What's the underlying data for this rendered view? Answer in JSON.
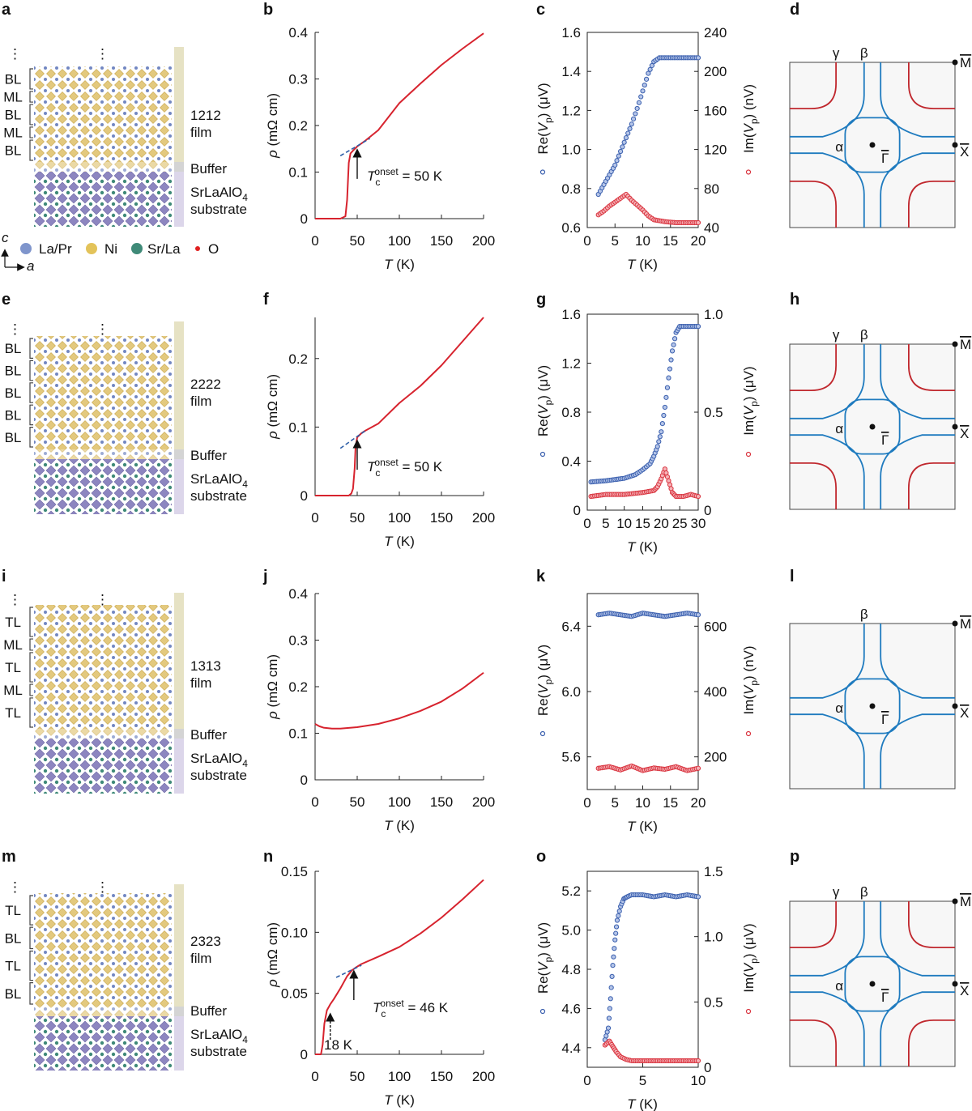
{
  "legend": {
    "items": [
      {
        "label": "La/Pr",
        "color": "#7f95cc"
      },
      {
        "label": "Ni",
        "color": "#e3c35a"
      },
      {
        "label": "Sr/La",
        "color": "#3f8a78"
      },
      {
        "label": "O",
        "color": "#e02020"
      }
    ],
    "axis_c": "c",
    "axis_a": "a"
  },
  "rows": [
    {
      "structure": {
        "letter": "a",
        "layers": [
          "BL",
          "ML",
          "BL",
          "ML",
          "BL"
        ],
        "film_label": [
          "1212",
          "film"
        ],
        "buffer": "Buffer",
        "substrate": [
          "SrLaAlO",
          "4",
          "substrate"
        ],
        "ellipsis": "⋮"
      },
      "fermi": {
        "letter": "d",
        "gamma": true,
        "labels": {
          "gamma": "γ",
          "beta": "β",
          "alpha": "α",
          "gamma_point": "Γ",
          "m_point": "M",
          "x_point": "X"
        }
      }
    },
    {
      "structure": {
        "letter": "e",
        "layers": [
          "BL",
          "BL",
          "BL",
          "BL",
          "BL"
        ],
        "film_label": [
          "2222",
          "film"
        ],
        "buffer": "Buffer",
        "substrate": [
          "SrLaAlO",
          "4",
          "substrate"
        ],
        "ellipsis": "⋮"
      },
      "fermi": {
        "letter": "h",
        "gamma": true,
        "labels": {
          "gamma": "γ",
          "beta": "β",
          "alpha": "α",
          "gamma_point": "Γ",
          "m_point": "M",
          "x_point": "X"
        }
      }
    },
    {
      "structure": {
        "letter": "i",
        "layers": [
          "TL",
          "ML",
          "TL",
          "ML",
          "TL"
        ],
        "film_label": [
          "1313",
          "film"
        ],
        "buffer": "Buffer",
        "substrate": [
          "SrLaAlO",
          "4",
          "substrate"
        ],
        "ellipsis": "⋮"
      },
      "fermi": {
        "letter": "l",
        "gamma": false,
        "labels": {
          "beta": "β",
          "alpha": "α",
          "gamma_point": "Γ",
          "m_point": "M",
          "x_point": "X"
        }
      }
    },
    {
      "structure": {
        "letter": "m",
        "layers": [
          "TL",
          "BL",
          "TL",
          "BL"
        ],
        "film_label": [
          "2323",
          "film"
        ],
        "buffer": "Buffer",
        "substrate": [
          "SrLaAlO",
          "4",
          "substrate"
        ],
        "ellipsis": "⋮"
      },
      "fermi": {
        "letter": "p",
        "gamma": true,
        "labels": {
          "gamma": "γ",
          "beta": "β",
          "alpha": "α",
          "gamma_point": "Γ",
          "m_point": "M",
          "x_point": "X"
        }
      }
    }
  ],
  "colors": {
    "curve": "#d7232e",
    "dash": "#2f5fa8",
    "re_points": "#3a5fae",
    "im_points": "#d9343f",
    "fermi_blue": "#1f7bbf",
    "fermi_red": "#c0282e"
  },
  "chart_data": [
    {
      "panel": "b",
      "type": "line",
      "xlabel": {
        "var": "T",
        "unit": " (K)"
      },
      "ylabel": {
        "var": "ρ",
        "unit": " (mΩ cm)"
      },
      "xlim": [
        0,
        200
      ],
      "ylim": [
        0,
        0.4
      ],
      "xticks": [
        0,
        50,
        100,
        150,
        200
      ],
      "yticks": [
        0,
        0.1,
        0.2,
        0.3,
        0.4
      ],
      "ytick_labels": [
        "0",
        "0.1",
        "0.2",
        "0.3",
        "0.4"
      ],
      "series": [
        {
          "x": [
            0,
            30,
            36,
            38,
            40,
            42,
            45,
            50,
            60,
            75,
            100,
            125,
            150,
            175,
            200
          ],
          "y": [
            0,
            0,
            0.005,
            0.04,
            0.12,
            0.14,
            0.146,
            0.155,
            0.168,
            0.19,
            0.248,
            0.29,
            0.33,
            0.365,
            0.398
          ]
        }
      ],
      "extrapolation": {
        "x": [
          30,
          65
        ],
        "y": [
          0.135,
          0.172
        ]
      },
      "annotation": {
        "var": "T",
        "sub": "c",
        "sup": "onset",
        "rest": " = 50 K",
        "arrow_T": 50
      }
    },
    {
      "panel": "c",
      "type": "scatter",
      "xlabel": {
        "var": "T",
        "unit": " (K)"
      },
      "ylabel_left": {
        "pre": "Re(",
        "var": "V",
        "sub": "p",
        "post": ") (μV)"
      },
      "ylabel_right": {
        "pre": "Im(",
        "var": "V",
        "sub": "p",
        "post": ") (nV)"
      },
      "xlim": [
        0,
        20
      ],
      "ylim_left": [
        0.6,
        1.6
      ],
      "ylim_right": [
        40,
        240
      ],
      "xticks": [
        0,
        5,
        10,
        15,
        20
      ],
      "yticks_left": [
        0.6,
        0.8,
        1.0,
        1.2,
        1.4,
        1.6
      ],
      "ytick_labels_left": [
        "0.6",
        "0.8",
        "1.0",
        "1.2",
        "1.4",
        "1.6"
      ],
      "yticks_right": [
        40,
        80,
        120,
        160,
        200,
        240
      ],
      "ytick_labels_right": [
        "40",
        "80",
        "120",
        "160",
        "200",
        "240"
      ],
      "re": {
        "x": [
          2,
          3,
          4,
          5,
          6,
          7,
          8,
          9,
          10,
          11,
          12,
          13,
          14,
          16,
          18,
          20
        ],
        "y": [
          0.77,
          0.82,
          0.87,
          0.92,
          0.99,
          1.06,
          1.13,
          1.21,
          1.3,
          1.39,
          1.45,
          1.47,
          1.47,
          1.47,
          1.47,
          1.47
        ]
      },
      "im": {
        "x": [
          2,
          3,
          4,
          5,
          6,
          7,
          8,
          9,
          10,
          11,
          12,
          14,
          16,
          18,
          20
        ],
        "y": [
          53,
          57,
          62,
          66,
          70,
          74,
          68,
          63,
          58,
          52,
          48,
          46,
          45,
          45,
          45
        ]
      }
    },
    {
      "panel": "f",
      "type": "line",
      "xlabel": {
        "var": "T",
        "unit": " (K)"
      },
      "ylabel": {
        "var": "ρ",
        "unit": " (mΩ cm)"
      },
      "xlim": [
        0,
        200
      ],
      "ylim": [
        0,
        0.26
      ],
      "xticks": [
        0,
        50,
        100,
        150,
        200
      ],
      "yticks": [
        0,
        0.1,
        0.2
      ],
      "ytick_labels": [
        "0",
        "0.1",
        "0.2"
      ],
      "series": [
        {
          "x": [
            0,
            40,
            43,
            45,
            47,
            48,
            50,
            55,
            60,
            75,
            100,
            125,
            150,
            175,
            200
          ],
          "y": [
            0,
            0,
            0.003,
            0.01,
            0.04,
            0.07,
            0.085,
            0.091,
            0.095,
            0.105,
            0.135,
            0.16,
            0.19,
            0.225,
            0.26
          ]
        }
      ],
      "extrapolation": {
        "x": [
          30,
          60
        ],
        "y": [
          0.069,
          0.095
        ]
      },
      "annotation": {
        "var": "T",
        "sub": "c",
        "sup": "onset",
        "rest": " = 50 K",
        "arrow_T": 50
      }
    },
    {
      "panel": "g",
      "type": "scatter",
      "xlabel": {
        "var": "T",
        "unit": " (K)"
      },
      "ylabel_left": {
        "pre": "Re(",
        "var": "V",
        "sub": "p",
        "post": ") (μV)"
      },
      "ylabel_right": {
        "pre": "Im(",
        "var": "V",
        "sub": "p",
        "post": ") (μV)"
      },
      "xlim": [
        0,
        30
      ],
      "ylim_left": [
        0,
        1.6
      ],
      "ylim_right": [
        0,
        1.0
      ],
      "xticks": [
        0,
        5,
        10,
        15,
        20,
        25,
        30
      ],
      "yticks_left": [
        0,
        0.4,
        0.8,
        1.2,
        1.6
      ],
      "ytick_labels_left": [
        "0",
        "0.4",
        "0.8",
        "1.2",
        "1.6"
      ],
      "yticks_right": [
        0,
        0.5,
        1.0
      ],
      "ytick_labels_right": [
        "0",
        "0.5",
        "1.0"
      ],
      "re": {
        "x": [
          1,
          5,
          10,
          13,
          15,
          17,
          18,
          19,
          20,
          21,
          22,
          23,
          24,
          25,
          27,
          30
        ],
        "y": [
          0.23,
          0.24,
          0.26,
          0.29,
          0.33,
          0.38,
          0.44,
          0.52,
          0.64,
          0.84,
          1.08,
          1.3,
          1.45,
          1.5,
          1.5,
          1.5
        ]
      },
      "im": {
        "x": [
          1,
          5,
          10,
          15,
          18,
          19,
          20,
          21,
          22,
          23,
          24,
          26,
          28,
          30
        ],
        "y": [
          0.07,
          0.08,
          0.08,
          0.09,
          0.1,
          0.12,
          0.16,
          0.21,
          0.15,
          0.09,
          0.07,
          0.07,
          0.08,
          0.07
        ]
      }
    },
    {
      "panel": "j",
      "type": "line",
      "xlabel": {
        "var": "T",
        "unit": " (K)"
      },
      "ylabel": {
        "var": "ρ",
        "unit": " (mΩ cm)"
      },
      "xlim": [
        0,
        200
      ],
      "ylim": [
        0,
        0.4
      ],
      "xticks": [
        0,
        50,
        100,
        150,
        200
      ],
      "yticks": [
        0,
        0.1,
        0.2,
        0.3,
        0.4
      ],
      "ytick_labels": [
        "0",
        "0.1",
        "0.2",
        "0.3",
        "0.4"
      ],
      "series": [
        {
          "x": [
            0,
            5,
            10,
            20,
            30,
            50,
            75,
            100,
            125,
            150,
            175,
            200
          ],
          "y": [
            0.12,
            0.115,
            0.112,
            0.11,
            0.11,
            0.113,
            0.12,
            0.132,
            0.148,
            0.168,
            0.196,
            0.23
          ]
        }
      ]
    },
    {
      "panel": "k",
      "type": "scatter",
      "xlabel": {
        "var": "T",
        "unit": " (K)"
      },
      "ylabel_left": {
        "pre": "Re(",
        "var": "V",
        "sub": "p",
        "post": ") (μV)"
      },
      "ylabel_right": {
        "pre": "Im(",
        "var": "V",
        "sub": "p",
        "post": ") (nV)"
      },
      "xlim": [
        0,
        20
      ],
      "ylim_left": [
        5.4,
        6.6
      ],
      "ylim_right": [
        100,
        700
      ],
      "xticks": [
        0,
        5,
        10,
        15,
        20
      ],
      "yticks_left": [
        5.6,
        6.0,
        6.4
      ],
      "ytick_labels_left": [
        "5.6",
        "6.0",
        "6.4"
      ],
      "yticks_right": [
        200,
        400,
        600
      ],
      "ytick_labels_right": [
        "200",
        "400",
        "600"
      ],
      "re": {
        "x": [
          2,
          4,
          6,
          8,
          10,
          12,
          14,
          16,
          18,
          20
        ],
        "y": [
          6.47,
          6.48,
          6.47,
          6.46,
          6.48,
          6.47,
          6.46,
          6.47,
          6.48,
          6.47
        ]
      },
      "im": {
        "x": [
          2,
          4,
          6,
          8,
          10,
          12,
          14,
          16,
          18,
          20
        ],
        "y": [
          165,
          170,
          160,
          172,
          158,
          166,
          162,
          170,
          158,
          165
        ]
      }
    },
    {
      "panel": "n",
      "type": "line",
      "xlabel": {
        "var": "T",
        "unit": " (K)"
      },
      "ylabel": {
        "var": "ρ",
        "unit": " (mΩ cm)"
      },
      "xlim": [
        0,
        200
      ],
      "ylim": [
        0,
        0.15
      ],
      "xticks": [
        0,
        50,
        100,
        150,
        200
      ],
      "yticks": [
        0,
        0.05,
        0.1,
        0.15
      ],
      "ytick_labels": [
        "0",
        "0.05",
        "0.10",
        "0.15"
      ],
      "series": [
        {
          "x": [
            0,
            7,
            9,
            11,
            14,
            18,
            22,
            30,
            38,
            44,
            48,
            55,
            75,
            100,
            125,
            150,
            175,
            200
          ],
          "y": [
            0,
            0,
            0.008,
            0.025,
            0.036,
            0.041,
            0.045,
            0.054,
            0.064,
            0.069,
            0.071,
            0.074,
            0.08,
            0.088,
            0.099,
            0.112,
            0.127,
            0.143
          ]
        }
      ],
      "extrapolation": {
        "x": [
          25,
          55
        ],
        "y": [
          0.063,
          0.073
        ]
      },
      "annotation": {
        "var": "T",
        "sub": "c",
        "sup": "onset",
        "rest": " = 46 K",
        "arrow_T": 46
      },
      "annotation2": {
        "text": "18 K",
        "arrow_T": 18
      }
    },
    {
      "panel": "o",
      "type": "scatter",
      "xlabel": {
        "var": "T",
        "unit": " (K)"
      },
      "ylabel_left": {
        "pre": "Re(",
        "var": "V",
        "sub": "p",
        "post": ") (μV)"
      },
      "ylabel_right": {
        "pre": "Im(",
        "var": "V",
        "sub": "p",
        "post": ") (μV)"
      },
      "xlim": [
        0,
        10
      ],
      "ylim_left": [
        4.3,
        5.3
      ],
      "ylim_right": [
        0,
        1.5
      ],
      "xticks": [
        0,
        5,
        10
      ],
      "yticks_left": [
        4.4,
        4.6,
        4.8,
        5.0,
        5.2
      ],
      "ytick_labels_left": [
        "4.4",
        "4.6",
        "4.8",
        "5.0",
        "5.2"
      ],
      "yticks_right": [
        0,
        0.5,
        1.0,
        1.5
      ],
      "ytick_labels_right": [
        "0",
        "0.5",
        "1.0",
        "1.5"
      ],
      "re": {
        "x": [
          1.6,
          1.9,
          2.1,
          2.3,
          2.5,
          2.7,
          3.0,
          3.3,
          3.6,
          4,
          5,
          6,
          7,
          8,
          9,
          10
        ],
        "y": [
          4.44,
          4.5,
          4.65,
          4.82,
          4.95,
          5.05,
          5.12,
          5.16,
          5.17,
          5.18,
          5.18,
          5.17,
          5.18,
          5.17,
          5.18,
          5.17
        ]
      },
      "im": {
        "x": [
          1.6,
          2,
          2.3,
          2.6,
          3,
          3.5,
          4,
          5,
          6,
          7,
          8,
          9,
          10
        ],
        "y": [
          0.17,
          0.2,
          0.16,
          0.12,
          0.08,
          0.06,
          0.05,
          0.05,
          0.05,
          0.05,
          0.05,
          0.05,
          0.05
        ]
      }
    }
  ]
}
